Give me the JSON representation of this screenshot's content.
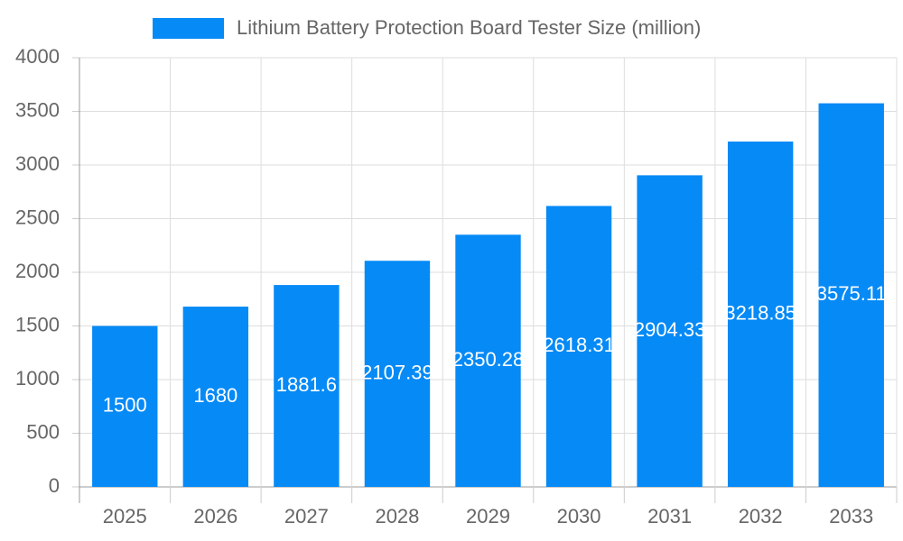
{
  "chart_data": {
    "type": "bar",
    "categories": [
      "2025",
      "2026",
      "2027",
      "2028",
      "2029",
      "2030",
      "2031",
      "2032",
      "2033"
    ],
    "series": [
      {
        "name": "Lithium Battery Protection Board Tester Size (million)",
        "color": "#068af6",
        "values": [
          1500,
          1680,
          1881.6,
          2107.39,
          2350.28,
          2618.31,
          2904.33,
          3218.85,
          3575.11
        ]
      }
    ],
    "ylim": [
      0,
      4000
    ],
    "yticks": [
      0,
      500,
      1000,
      1500,
      2000,
      2500,
      3000,
      3500,
      4000
    ],
    "grid": true,
    "legend": "top"
  }
}
